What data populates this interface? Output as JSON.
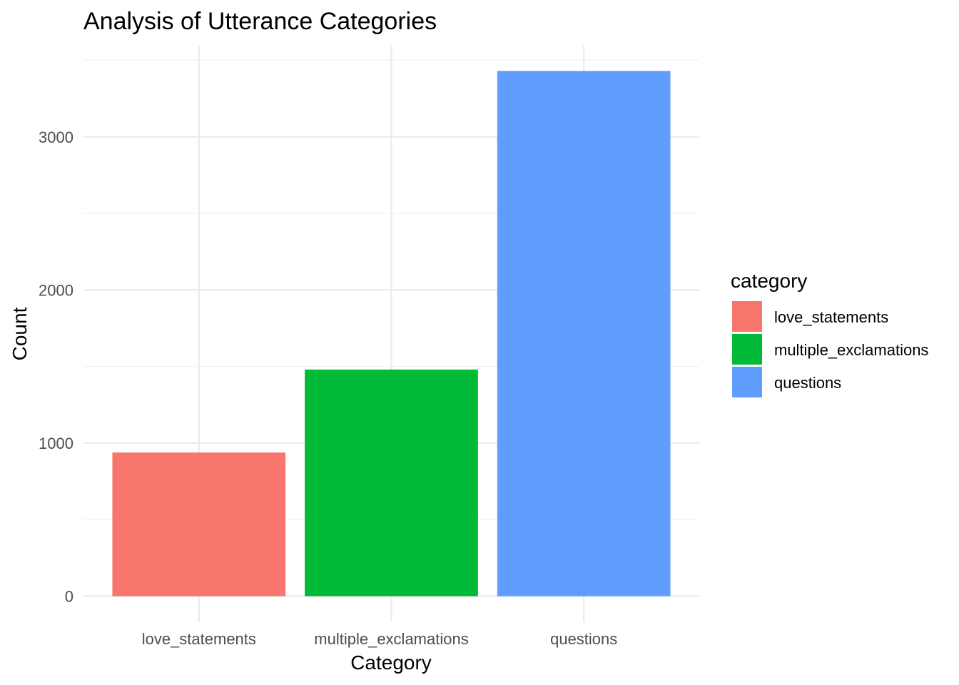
{
  "chart_data": {
    "type": "bar",
    "title": "Analysis of Utterance Categories",
    "xlabel": "Category",
    "ylabel": "Count",
    "categories": [
      "love_statements",
      "multiple_exclamations",
      "questions"
    ],
    "values": [
      938,
      1480,
      3430
    ],
    "colors": [
      "#F8766D",
      "#00BA38",
      "#619CFF"
    ],
    "ylim": [
      -170,
      3600
    ],
    "yticks": [
      0,
      1000,
      2000,
      3000
    ],
    "ytick_labels": [
      "0",
      "1000",
      "2000",
      "3000"
    ],
    "grid": true,
    "legend": {
      "title": "category",
      "placement": "right",
      "entries": [
        "love_statements",
        "multiple_exclamations",
        "questions"
      ]
    }
  }
}
